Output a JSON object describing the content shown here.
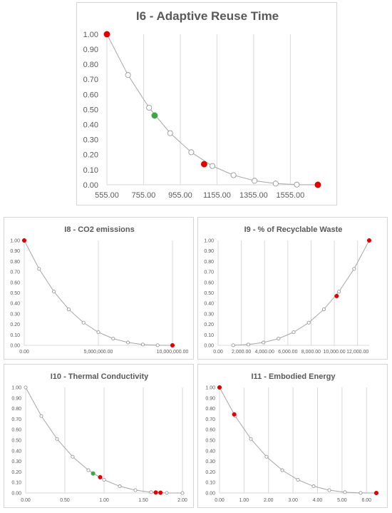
{
  "colors": {
    "line": "#a6a6a6",
    "grid": "#d9d9d9",
    "open_marker": "#ffffff",
    "open_marker_stroke": "#8c8c8c",
    "red_marker": "#e00000",
    "green_marker": "#3aa845",
    "text": "#595959"
  },
  "chart_data": [
    {
      "id": "i6",
      "type": "line",
      "title": "I6 - Adaptive Reuse Time",
      "xlim": [
        555,
        1705
      ],
      "ylim": [
        0,
        1
      ],
      "xticks": [
        555,
        755,
        955,
        1155,
        1355,
        1555
      ],
      "xtick_labels": [
        "555.00",
        "755.00",
        "955.00",
        "1155.00",
        "1355.00",
        "1555.00"
      ],
      "yticks": [
        0,
        0.1,
        0.2,
        0.3,
        0.4,
        0.5,
        0.6,
        0.7,
        0.8,
        0.9,
        1.0
      ],
      "ytick_labels": [
        "0.00",
        "0.10",
        "0.20",
        "0.30",
        "0.40",
        "0.50",
        "0.60",
        "0.70",
        "0.80",
        "0.90",
        "1.00"
      ],
      "grid": "vertical",
      "curve": {
        "x": [
          555,
          670,
          785,
          900,
          1015,
          1130,
          1245,
          1360,
          1475,
          1590,
          1705
        ],
        "y": [
          1.0,
          0.729,
          0.512,
          0.343,
          0.216,
          0.125,
          0.064,
          0.027,
          0.008,
          0.001,
          0.0
        ]
      },
      "highlights": [
        {
          "x": 555,
          "y": 1.0,
          "color": "red"
        },
        {
          "x": 815,
          "y": 0.46,
          "color": "green"
        },
        {
          "x": 1085,
          "y": 0.137,
          "color": "red"
        },
        {
          "x": 1705,
          "y": 0.0,
          "color": "red"
        }
      ]
    },
    {
      "id": "i8",
      "type": "line",
      "title": "I8 - CO2 emissions",
      "xlim": [
        0,
        10000000
      ],
      "ylim": [
        0,
        1
      ],
      "xticks": [
        0,
        5000000,
        10000000
      ],
      "xtick_labels": [
        "0.00",
        "5,000,000.00",
        "10,000,000.00"
      ],
      "yticks": [
        0,
        0.1,
        0.2,
        0.3,
        0.4,
        0.5,
        0.6,
        0.7,
        0.8,
        0.9,
        1.0
      ],
      "ytick_labels": [
        "0.00",
        "0.10",
        "0.20",
        "0.30",
        "0.40",
        "0.50",
        "0.60",
        "0.70",
        "0.80",
        "0.90",
        "1.00"
      ],
      "grid": "vertical",
      "curve": {
        "x": [
          0,
          1000000,
          2000000,
          3000000,
          4000000,
          5000000,
          6000000,
          7000000,
          8000000,
          9000000,
          10000000
        ],
        "y": [
          1.0,
          0.729,
          0.512,
          0.343,
          0.216,
          0.125,
          0.064,
          0.027,
          0.008,
          0.001,
          0.0
        ]
      },
      "highlights": [
        {
          "x": 0,
          "y": 1.0,
          "color": "red"
        },
        {
          "x": 10000000,
          "y": 0.0,
          "color": "red"
        }
      ]
    },
    {
      "id": "i9",
      "type": "line",
      "title": "I9 - % of Recyclable Waste",
      "xlim": [
        0,
        13000
      ],
      "ylim": [
        0,
        1
      ],
      "xticks": [
        0,
        2000,
        4000,
        6000,
        8000,
        10000,
        12000
      ],
      "xtick_labels": [
        "0.00",
        "2,000.00",
        "4,000.00",
        "6,000.00",
        "8,000.00",
        "10,000.00",
        "12,000.00"
      ],
      "yticks": [
        0,
        0.1,
        0.2,
        0.3,
        0.4,
        0.5,
        0.6,
        0.7,
        0.8,
        0.9,
        1.0
      ],
      "ytick_labels": [
        "0.00",
        "0.10",
        "0.20",
        "0.30",
        "0.40",
        "0.50",
        "0.60",
        "0.70",
        "0.80",
        "0.90",
        "1.00"
      ],
      "grid": "vertical",
      "curve": {
        "x": [
          1300,
          2600,
          3900,
          5200,
          6500,
          7800,
          9100,
          10400,
          11700,
          13000
        ],
        "y": [
          0.001,
          0.008,
          0.027,
          0.064,
          0.125,
          0.216,
          0.343,
          0.512,
          0.729,
          1.0
        ]
      },
      "highlights": [
        {
          "x": 10200,
          "y": 0.47,
          "color": "red"
        },
        {
          "x": 13000,
          "y": 1.0,
          "color": "red"
        }
      ]
    },
    {
      "id": "i10",
      "type": "line",
      "title": "I10 - Thermal Conductivity",
      "xlim": [
        0,
        2.0
      ],
      "ylim": [
        0,
        1
      ],
      "xticks": [
        0,
        0.5,
        1.0,
        1.5,
        2.0
      ],
      "xtick_labels": [
        "0.00",
        "0.50",
        "1.00",
        "1.50",
        "2.00"
      ],
      "yticks": [
        0,
        0.1,
        0.2,
        0.3,
        0.4,
        0.5,
        0.6,
        0.7,
        0.8,
        0.9,
        1.0
      ],
      "ytick_labels": [
        "0.00",
        "0.10",
        "0.20",
        "0.30",
        "0.40",
        "0.50",
        "0.60",
        "0.70",
        "0.80",
        "0.90",
        "1.00"
      ],
      "grid": "vertical",
      "curve": {
        "x": [
          0,
          0.2,
          0.4,
          0.6,
          0.8,
          1.0,
          1.2,
          1.4,
          1.6,
          1.8,
          2.0
        ],
        "y": [
          1.0,
          0.729,
          0.512,
          0.343,
          0.216,
          0.125,
          0.064,
          0.027,
          0.008,
          0.001,
          0.0
        ]
      },
      "highlights": [
        {
          "x": 0.86,
          "y": 0.185,
          "color": "green"
        },
        {
          "x": 0.95,
          "y": 0.15,
          "color": "red"
        },
        {
          "x": 1.66,
          "y": 0.005,
          "color": "red"
        },
        {
          "x": 1.72,
          "y": 0.003,
          "color": "red"
        }
      ]
    },
    {
      "id": "i11",
      "type": "line",
      "title": "I11 - Embodied Energy",
      "xlim": [
        0,
        6.4
      ],
      "ylim": [
        0,
        1
      ],
      "xticks": [
        0,
        1,
        2,
        3,
        4,
        5,
        6
      ],
      "xtick_labels": [
        "0.00",
        "1.00",
        "2.00",
        "3.00",
        "4.00",
        "5.00",
        "6.00"
      ],
      "yticks": [
        0,
        0.1,
        0.2,
        0.3,
        0.4,
        0.5,
        0.6,
        0.7,
        0.8,
        0.9,
        1.0
      ],
      "ytick_labels": [
        "0.00",
        "0.10",
        "0.20",
        "0.30",
        "0.40",
        "0.50",
        "0.60",
        "0.70",
        "0.80",
        "0.90",
        "1.00"
      ],
      "grid": "vertical",
      "curve": {
        "x": [
          0,
          0.64,
          1.28,
          1.92,
          2.56,
          3.2,
          3.84,
          4.48,
          5.12,
          5.76,
          6.4
        ],
        "y": [
          1.0,
          0.729,
          0.512,
          0.343,
          0.216,
          0.125,
          0.064,
          0.027,
          0.008,
          0.001,
          0.0
        ]
      },
      "highlights": [
        {
          "x": 0,
          "y": 1.0,
          "color": "red"
        },
        {
          "x": 0.6,
          "y": 0.745,
          "color": "red"
        },
        {
          "x": 6.4,
          "y": 0.0,
          "color": "red"
        }
      ]
    }
  ]
}
